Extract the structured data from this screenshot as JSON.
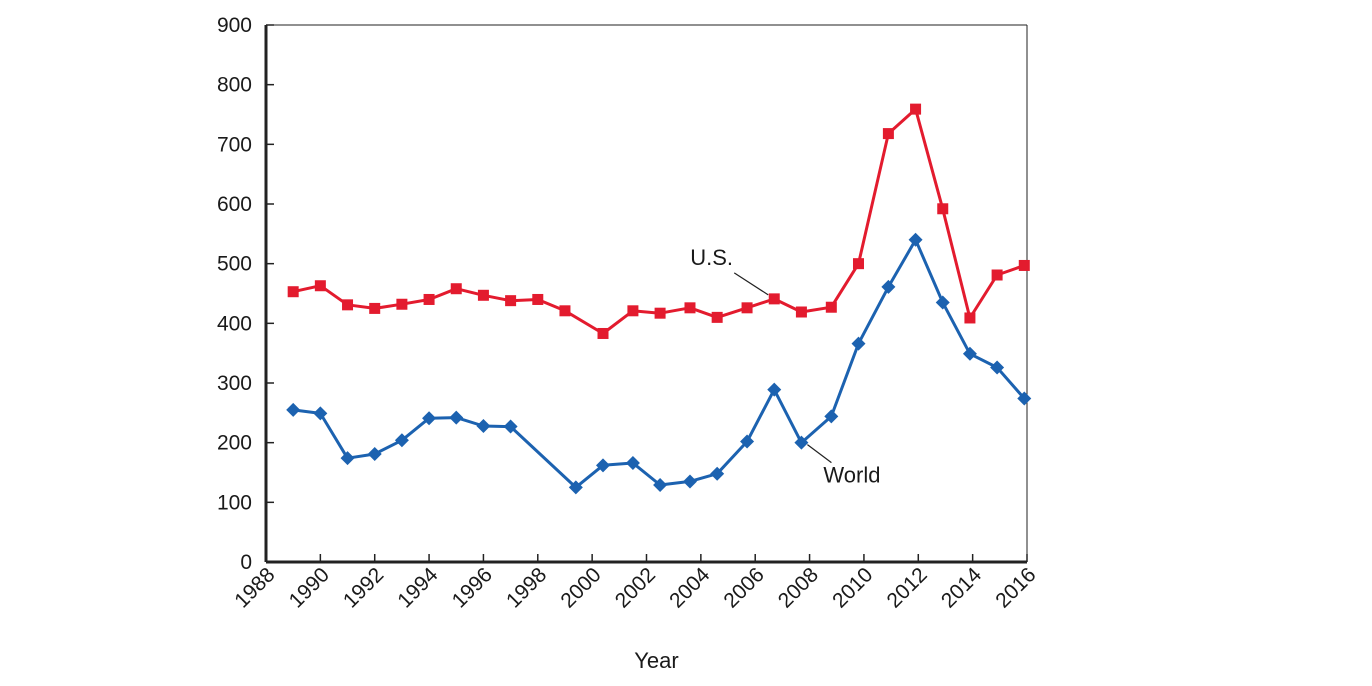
{
  "chart_data": {
    "type": "line",
    "title": "",
    "xlabel": "Year",
    "ylabel": "",
    "xlim": [
      1988,
      2016
    ],
    "ylim": [
      0,
      900
    ],
    "x_ticks": [
      1988,
      1990,
      1992,
      1994,
      1996,
      1998,
      2000,
      2002,
      2004,
      2006,
      2008,
      2010,
      2012,
      2014,
      2016
    ],
    "y_ticks": [
      0,
      100,
      200,
      300,
      400,
      500,
      600,
      700,
      800,
      900
    ],
    "grid": false,
    "legend": "none",
    "series": [
      {
        "name": "U.S.",
        "color": "#e31b2e",
        "marker": "square",
        "label_at_x": 2006.7,
        "x": [
          1989,
          1990,
          1991,
          1992,
          1993,
          1994,
          1995,
          1996,
          1997,
          1998,
          1999,
          2000.4,
          2001.5,
          2002.5,
          2003.6,
          2004.6,
          2005.7,
          2006.7,
          2007.7,
          2008.8,
          2009.8,
          2010.9,
          2011.9,
          2012.9,
          2013.9,
          2014.9,
          2015.9
        ],
        "y": [
          453,
          463,
          431,
          425,
          432,
          440,
          458,
          447,
          438,
          440,
          421,
          383,
          421,
          417,
          426,
          410,
          426,
          441,
          419,
          427,
          500,
          718,
          759,
          592,
          409,
          481,
          497
        ]
      },
      {
        "name": "World",
        "color": "#1c62b0",
        "marker": "diamond",
        "label_at_x": 2007.7,
        "x": [
          1989,
          1990,
          1991,
          1992,
          1993,
          1994,
          1995,
          1996,
          1997,
          1998,
          1999.4,
          2000.4,
          2001.5,
          2002.5,
          2003.6,
          2004.6,
          2005.7,
          2006.7,
          2007.7,
          2008.8,
          2009.8,
          2010.9,
          2011.9,
          2012.9,
          2013.9,
          2014.9,
          2015.9
        ],
        "y": [
          255,
          249,
          174,
          181,
          204,
          241,
          242,
          228,
          227,
          null,
          125,
          162,
          166,
          129,
          135,
          148,
          202,
          289,
          200,
          244,
          366,
          461,
          540,
          435,
          349,
          326,
          274
        ]
      }
    ]
  }
}
